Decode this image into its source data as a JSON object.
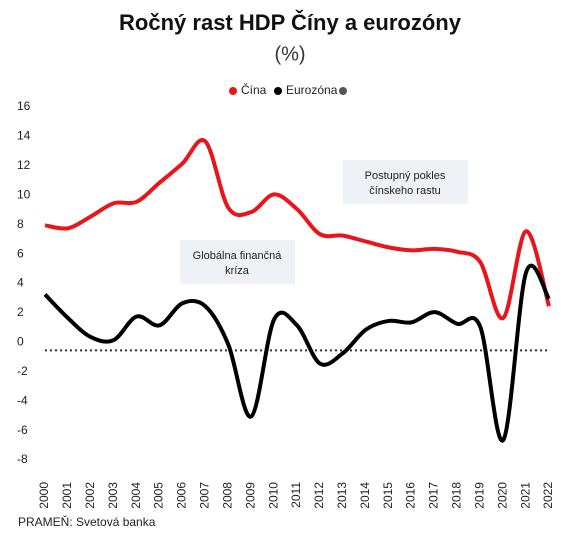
{
  "chart_data": {
    "type": "line",
    "title": "Ročný rast HDP Číny a eurozóny",
    "subtitle": "(%)",
    "categories": [
      "2000",
      "2001",
      "2002",
      "2003",
      "2004",
      "2005",
      "2006",
      "2007",
      "2008",
      "2009",
      "2010",
      "2011",
      "2012",
      "2013",
      "2014",
      "2015",
      "2016",
      "2017",
      "2018",
      "2019",
      "2020",
      "2021",
      "2022"
    ],
    "series": [
      {
        "name": "Čína",
        "color": "#e8161b",
        "values": [
          8.5,
          8.3,
          9.1,
          10.0,
          10.1,
          11.4,
          12.7,
          14.2,
          9.7,
          9.4,
          10.6,
          9.6,
          7.9,
          7.8,
          7.4,
          7.0,
          6.8,
          6.9,
          6.7,
          6.0,
          2.2,
          8.1,
          3.0
        ]
      },
      {
        "name": "Eurozóna",
        "color": "#000000",
        "values": [
          3.8,
          2.2,
          0.9,
          0.7,
          2.3,
          1.7,
          3.2,
          3.0,
          0.4,
          -4.5,
          2.1,
          1.7,
          -0.9,
          -0.2,
          1.4,
          2.0,
          1.9,
          2.6,
          1.8,
          1.6,
          -6.1,
          5.3,
          3.5
        ]
      }
    ],
    "ylim": [
      -8,
      16
    ],
    "yticks": [
      -8,
      -6,
      -4,
      -2,
      0,
      2,
      4,
      6,
      8,
      10,
      12,
      14,
      16
    ],
    "zero_line": true,
    "annotations": [
      {
        "lines": [
          "Postupný pokles",
          "čínskeho rastu"
        ]
      },
      {
        "lines": [
          "Globálna finančná",
          "kríza"
        ]
      }
    ],
    "source": "PRAMEŇ: Svetová banka"
  }
}
